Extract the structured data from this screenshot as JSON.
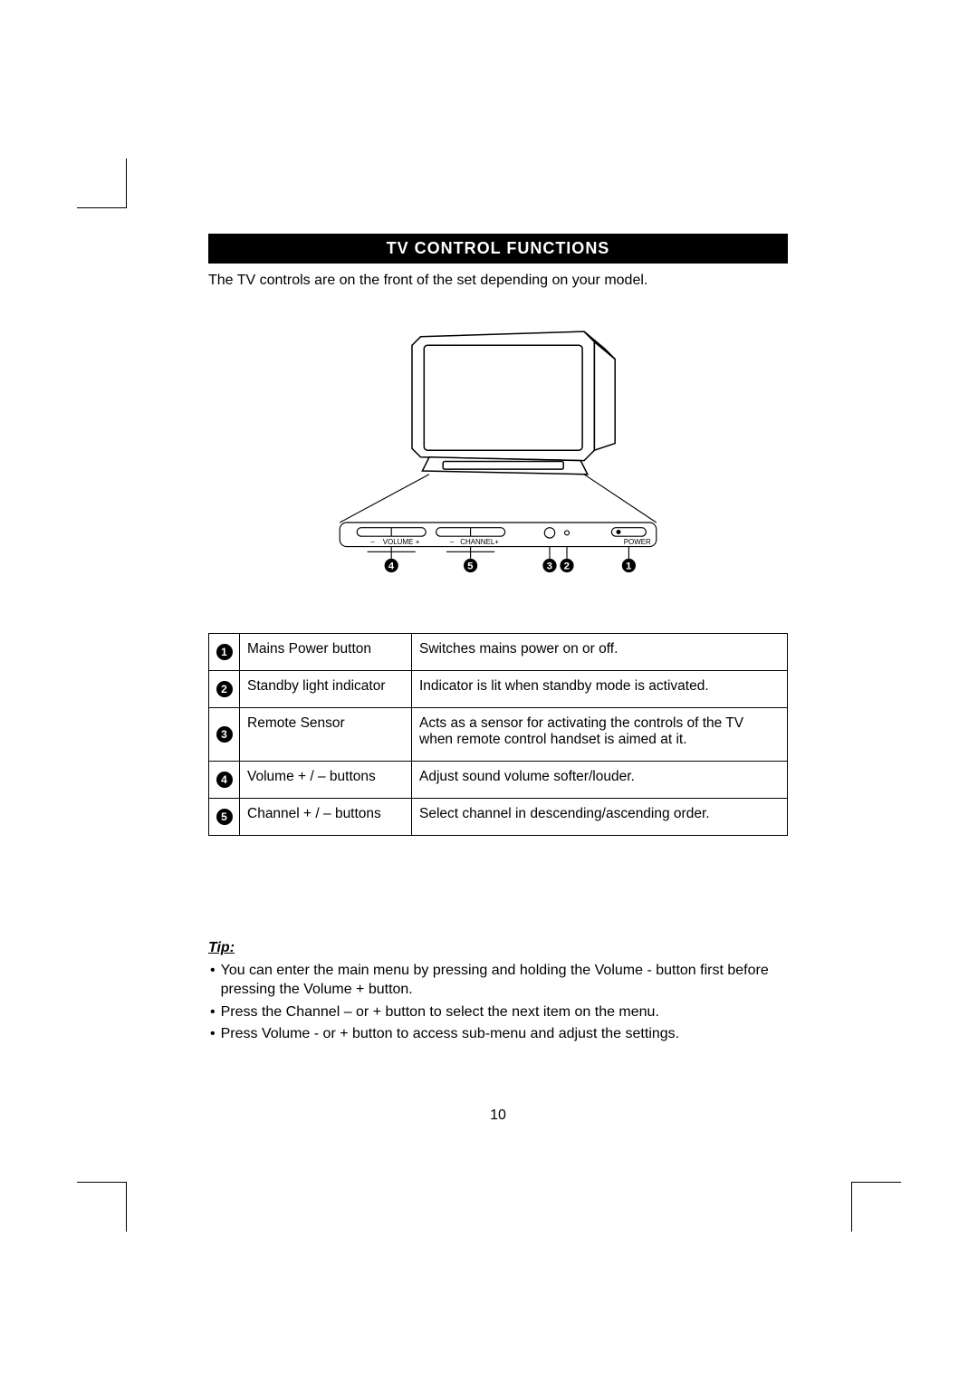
{
  "title": "TV CONTROL FUNCTIONS",
  "intro": "The TV controls are on the front of the set depending on your model.",
  "diagram": {
    "panel_labels": {
      "volume": "VOLUME",
      "channel": "CHANNEL",
      "power": "POWER"
    },
    "callouts": [
      "4",
      "5",
      "3",
      "2",
      "1"
    ]
  },
  "rows": [
    {
      "n": "1",
      "name": "Mains Power button",
      "desc": "Switches mains power on or off."
    },
    {
      "n": "2",
      "name": "Standby light indicator",
      "desc": "Indicator is lit when standby mode is activated."
    },
    {
      "n": "3",
      "name": "Remote Sensor",
      "desc": "Acts as a sensor for activating the controls of the TV when remote control handset is aimed at it."
    },
    {
      "n": "4",
      "name": "Volume  + / –  buttons",
      "desc": "Adjust sound volume softer/louder."
    },
    {
      "n": "5",
      "name": "Channel   + / –   buttons",
      "desc": "Select channel in descending/ascending order."
    }
  ],
  "tip": {
    "heading": "Tip:",
    "items": [
      "You can enter the main menu by pressing and holding the Volume - button first before pressing the Volume + button.",
      "Press the Channel  –  or  +  button to select the next item on the menu.",
      "Press Volume - or + button to access sub-menu and adjust the settings."
    ]
  },
  "page_number": "10",
  "colors": {
    "title_bg": "#000000",
    "title_fg": "#ffffff",
    "text": "#000000",
    "border": "#000000",
    "background": "#ffffff"
  }
}
